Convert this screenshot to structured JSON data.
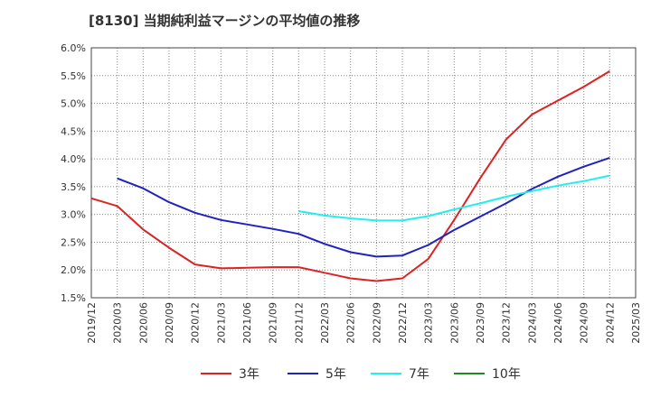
{
  "chart_data": {
    "type": "line",
    "title": "[8130]  当期純利益マージンの平均値の推移",
    "xlabel": "",
    "ylabel": "",
    "x": [
      "2019/12",
      "2020/03",
      "2020/06",
      "2020/09",
      "2020/12",
      "2021/03",
      "2021/06",
      "2021/09",
      "2021/12",
      "2022/03",
      "2022/06",
      "2022/09",
      "2022/12",
      "2023/03",
      "2023/06",
      "2023/09",
      "2023/12",
      "2024/03",
      "2024/06",
      "2024/09",
      "2024/12",
      "2025/03"
    ],
    "ylim": [
      0.015,
      0.06
    ],
    "y_ticks": [
      "1.5%",
      "2.0%",
      "2.5%",
      "3.0%",
      "3.5%",
      "4.0%",
      "4.5%",
      "5.0%",
      "5.5%",
      "6.0%"
    ],
    "grid": true,
    "legend_position": "bottom",
    "series": [
      {
        "name": "3年",
        "color": "#dd2222",
        "values": [
          0.0329,
          0.0315,
          0.0273,
          0.024,
          0.021,
          0.0203,
          0.0204,
          0.0205,
          0.0205,
          0.0195,
          0.0185,
          0.018,
          0.0185,
          0.022,
          0.029,
          0.0365,
          0.0435,
          0.048,
          0.0505,
          0.053,
          0.0558,
          null
        ]
      },
      {
        "name": "5年",
        "color": "#1f22c0",
        "values": [
          null,
          0.0365,
          0.0347,
          0.0322,
          0.0303,
          0.029,
          0.0282,
          0.0274,
          0.0265,
          0.0247,
          0.0232,
          0.0224,
          0.0226,
          0.0245,
          0.0272,
          0.0296,
          0.032,
          0.0346,
          0.0368,
          0.0386,
          0.0402,
          null
        ]
      },
      {
        "name": "7年",
        "color": "#22eeee",
        "values": [
          null,
          null,
          null,
          null,
          null,
          null,
          null,
          null,
          0.0306,
          0.0298,
          0.0293,
          0.0289,
          0.0289,
          0.0297,
          0.0309,
          0.032,
          0.0332,
          0.0342,
          0.0352,
          0.036,
          0.037,
          null
        ]
      },
      {
        "name": "10年",
        "color": "#228822",
        "values": [
          null,
          null,
          null,
          null,
          null,
          null,
          null,
          null,
          null,
          null,
          null,
          null,
          null,
          null,
          null,
          null,
          null,
          null,
          null,
          null,
          null,
          null
        ]
      }
    ]
  }
}
